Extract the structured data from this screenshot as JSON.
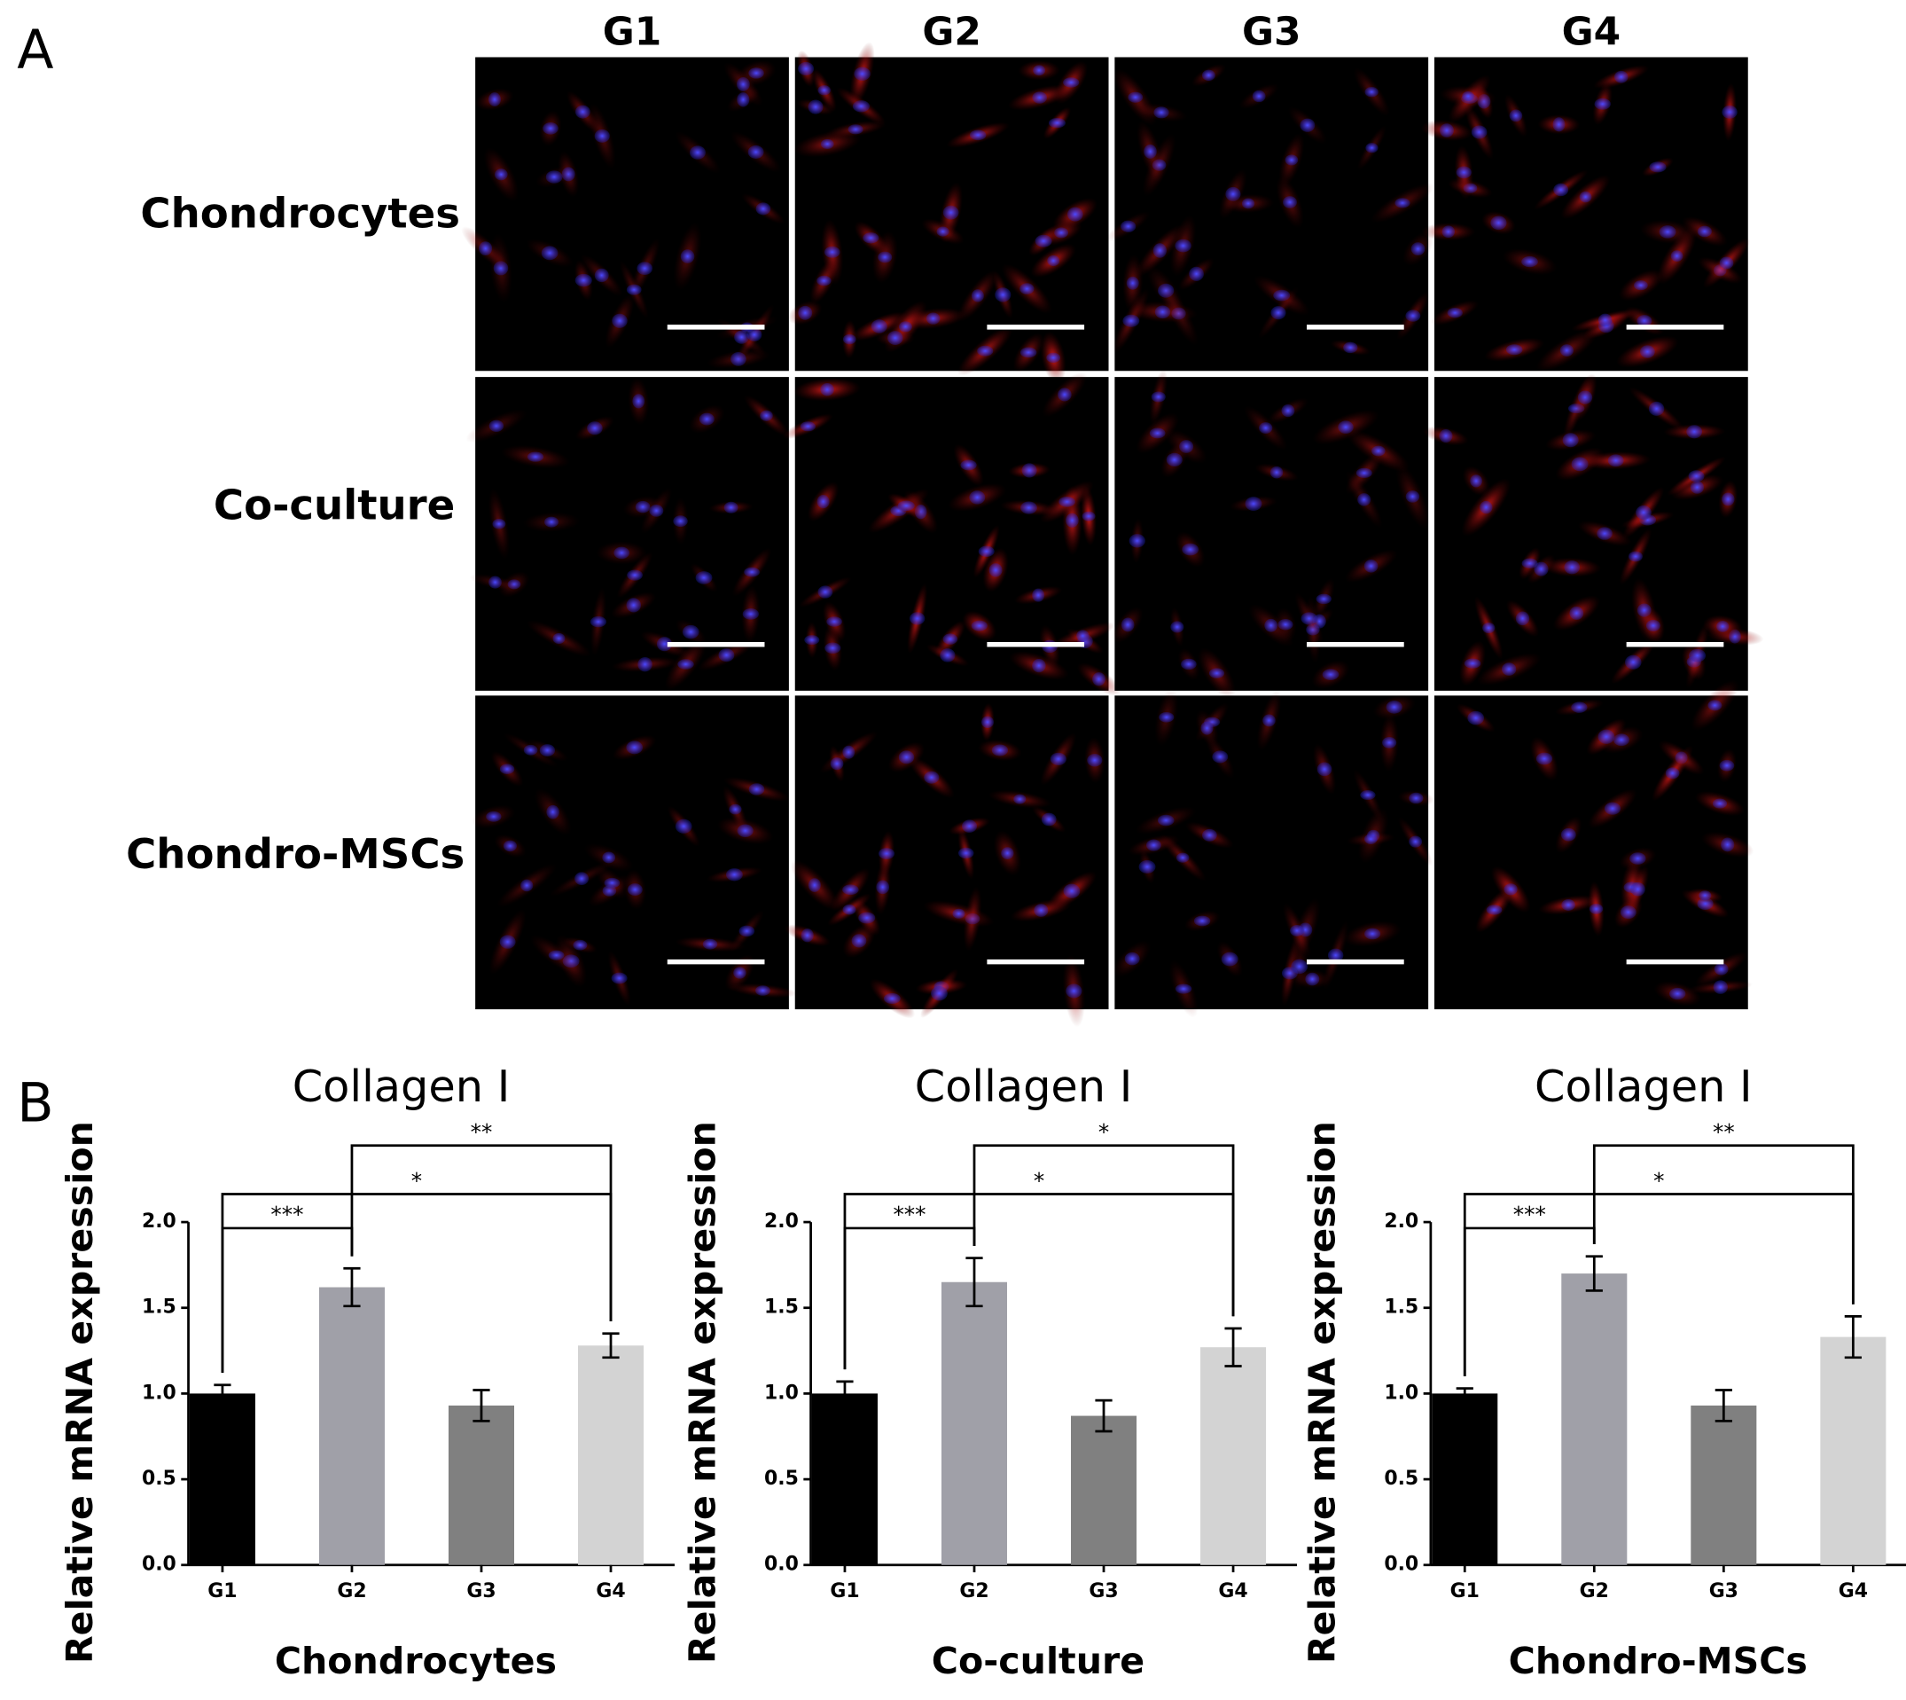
{
  "figure": {
    "panels": [
      "A",
      "B"
    ],
    "micrographs": {
      "columns": [
        "G1",
        "G2",
        "G3",
        "G4"
      ],
      "rows": [
        "Chondrocytes",
        "Co-culture",
        "Chondro-MSCs"
      ]
    }
  },
  "chart_data": [
    {
      "type": "bar",
      "title": "Collagen I",
      "y_label": "Relative mRNA expression",
      "x_label": "Chondrocytes",
      "categories": [
        "G1",
        "G2",
        "G3",
        "G4"
      ],
      "values": [
        1.0,
        1.62,
        0.93,
        1.28
      ],
      "errors": [
        0.05,
        0.11,
        0.09,
        0.07
      ],
      "colors": [
        "#000000",
        "#a0a0a8",
        "#808080",
        "#d3d3d3"
      ],
      "ylim": [
        0,
        2
      ],
      "yticks": [
        {
          "value": 0,
          "label": "0.0"
        },
        {
          "value": 0.5,
          "label": "0.5"
        },
        {
          "value": 1,
          "label": "1.0"
        },
        {
          "value": 1.5,
          "label": "1.5"
        },
        {
          "value": 2,
          "label": "2.0"
        }
      ],
      "comparisons": [
        {
          "groups": [
            "G1",
            "G2"
          ],
          "label": "***"
        },
        {
          "groups": [
            "G1",
            "G4"
          ],
          "label": "*"
        },
        {
          "groups": [
            "G2",
            "G4"
          ],
          "label": "**"
        }
      ]
    },
    {
      "type": "bar",
      "title": "Collagen I",
      "y_label": "Relative mRNA expression",
      "x_label": "Co-culture",
      "categories": [
        "G1",
        "G2",
        "G3",
        "G4"
      ],
      "values": [
        1.0,
        1.65,
        0.87,
        1.27
      ],
      "errors": [
        0.07,
        0.14,
        0.09,
        0.11
      ],
      "colors": [
        "#000000",
        "#a0a0a8",
        "#808080",
        "#d3d3d3"
      ],
      "ylim": [
        0,
        2
      ],
      "yticks": [
        {
          "value": 0,
          "label": "0.0"
        },
        {
          "value": 0.5,
          "label": "0.5"
        },
        {
          "value": 1,
          "label": "1.0"
        },
        {
          "value": 1.5,
          "label": "1.5"
        },
        {
          "value": 2,
          "label": "2.0"
        }
      ],
      "comparisons": [
        {
          "groups": [
            "G1",
            "G2"
          ],
          "label": "***"
        },
        {
          "groups": [
            "G1",
            "G4"
          ],
          "label": "*"
        },
        {
          "groups": [
            "G2",
            "G4"
          ],
          "label": "*"
        }
      ]
    },
    {
      "type": "bar",
      "title": "Collagen I",
      "y_label": "Relative mRNA expression",
      "x_label": "Chondro-MSCs",
      "categories": [
        "G1",
        "G2",
        "G3",
        "G4"
      ],
      "values": [
        1.0,
        1.7,
        0.93,
        1.33
      ],
      "errors": [
        0.03,
        0.1,
        0.09,
        0.12
      ],
      "colors": [
        "#000000",
        "#a0a0a8",
        "#808080",
        "#d3d3d3"
      ],
      "ylim": [
        0,
        2
      ],
      "yticks": [
        {
          "value": 0,
          "label": "0.0"
        },
        {
          "value": 0.5,
          "label": "0.5"
        },
        {
          "value": 1,
          "label": "1.0"
        },
        {
          "value": 1.5,
          "label": "1.5"
        },
        {
          "value": 2,
          "label": "2.0"
        }
      ],
      "comparisons": [
        {
          "groups": [
            "G1",
            "G2"
          ],
          "label": "***"
        },
        {
          "groups": [
            "G1",
            "G4"
          ],
          "label": "*"
        },
        {
          "groups": [
            "G2",
            "G4"
          ],
          "label": "**"
        }
      ]
    }
  ]
}
